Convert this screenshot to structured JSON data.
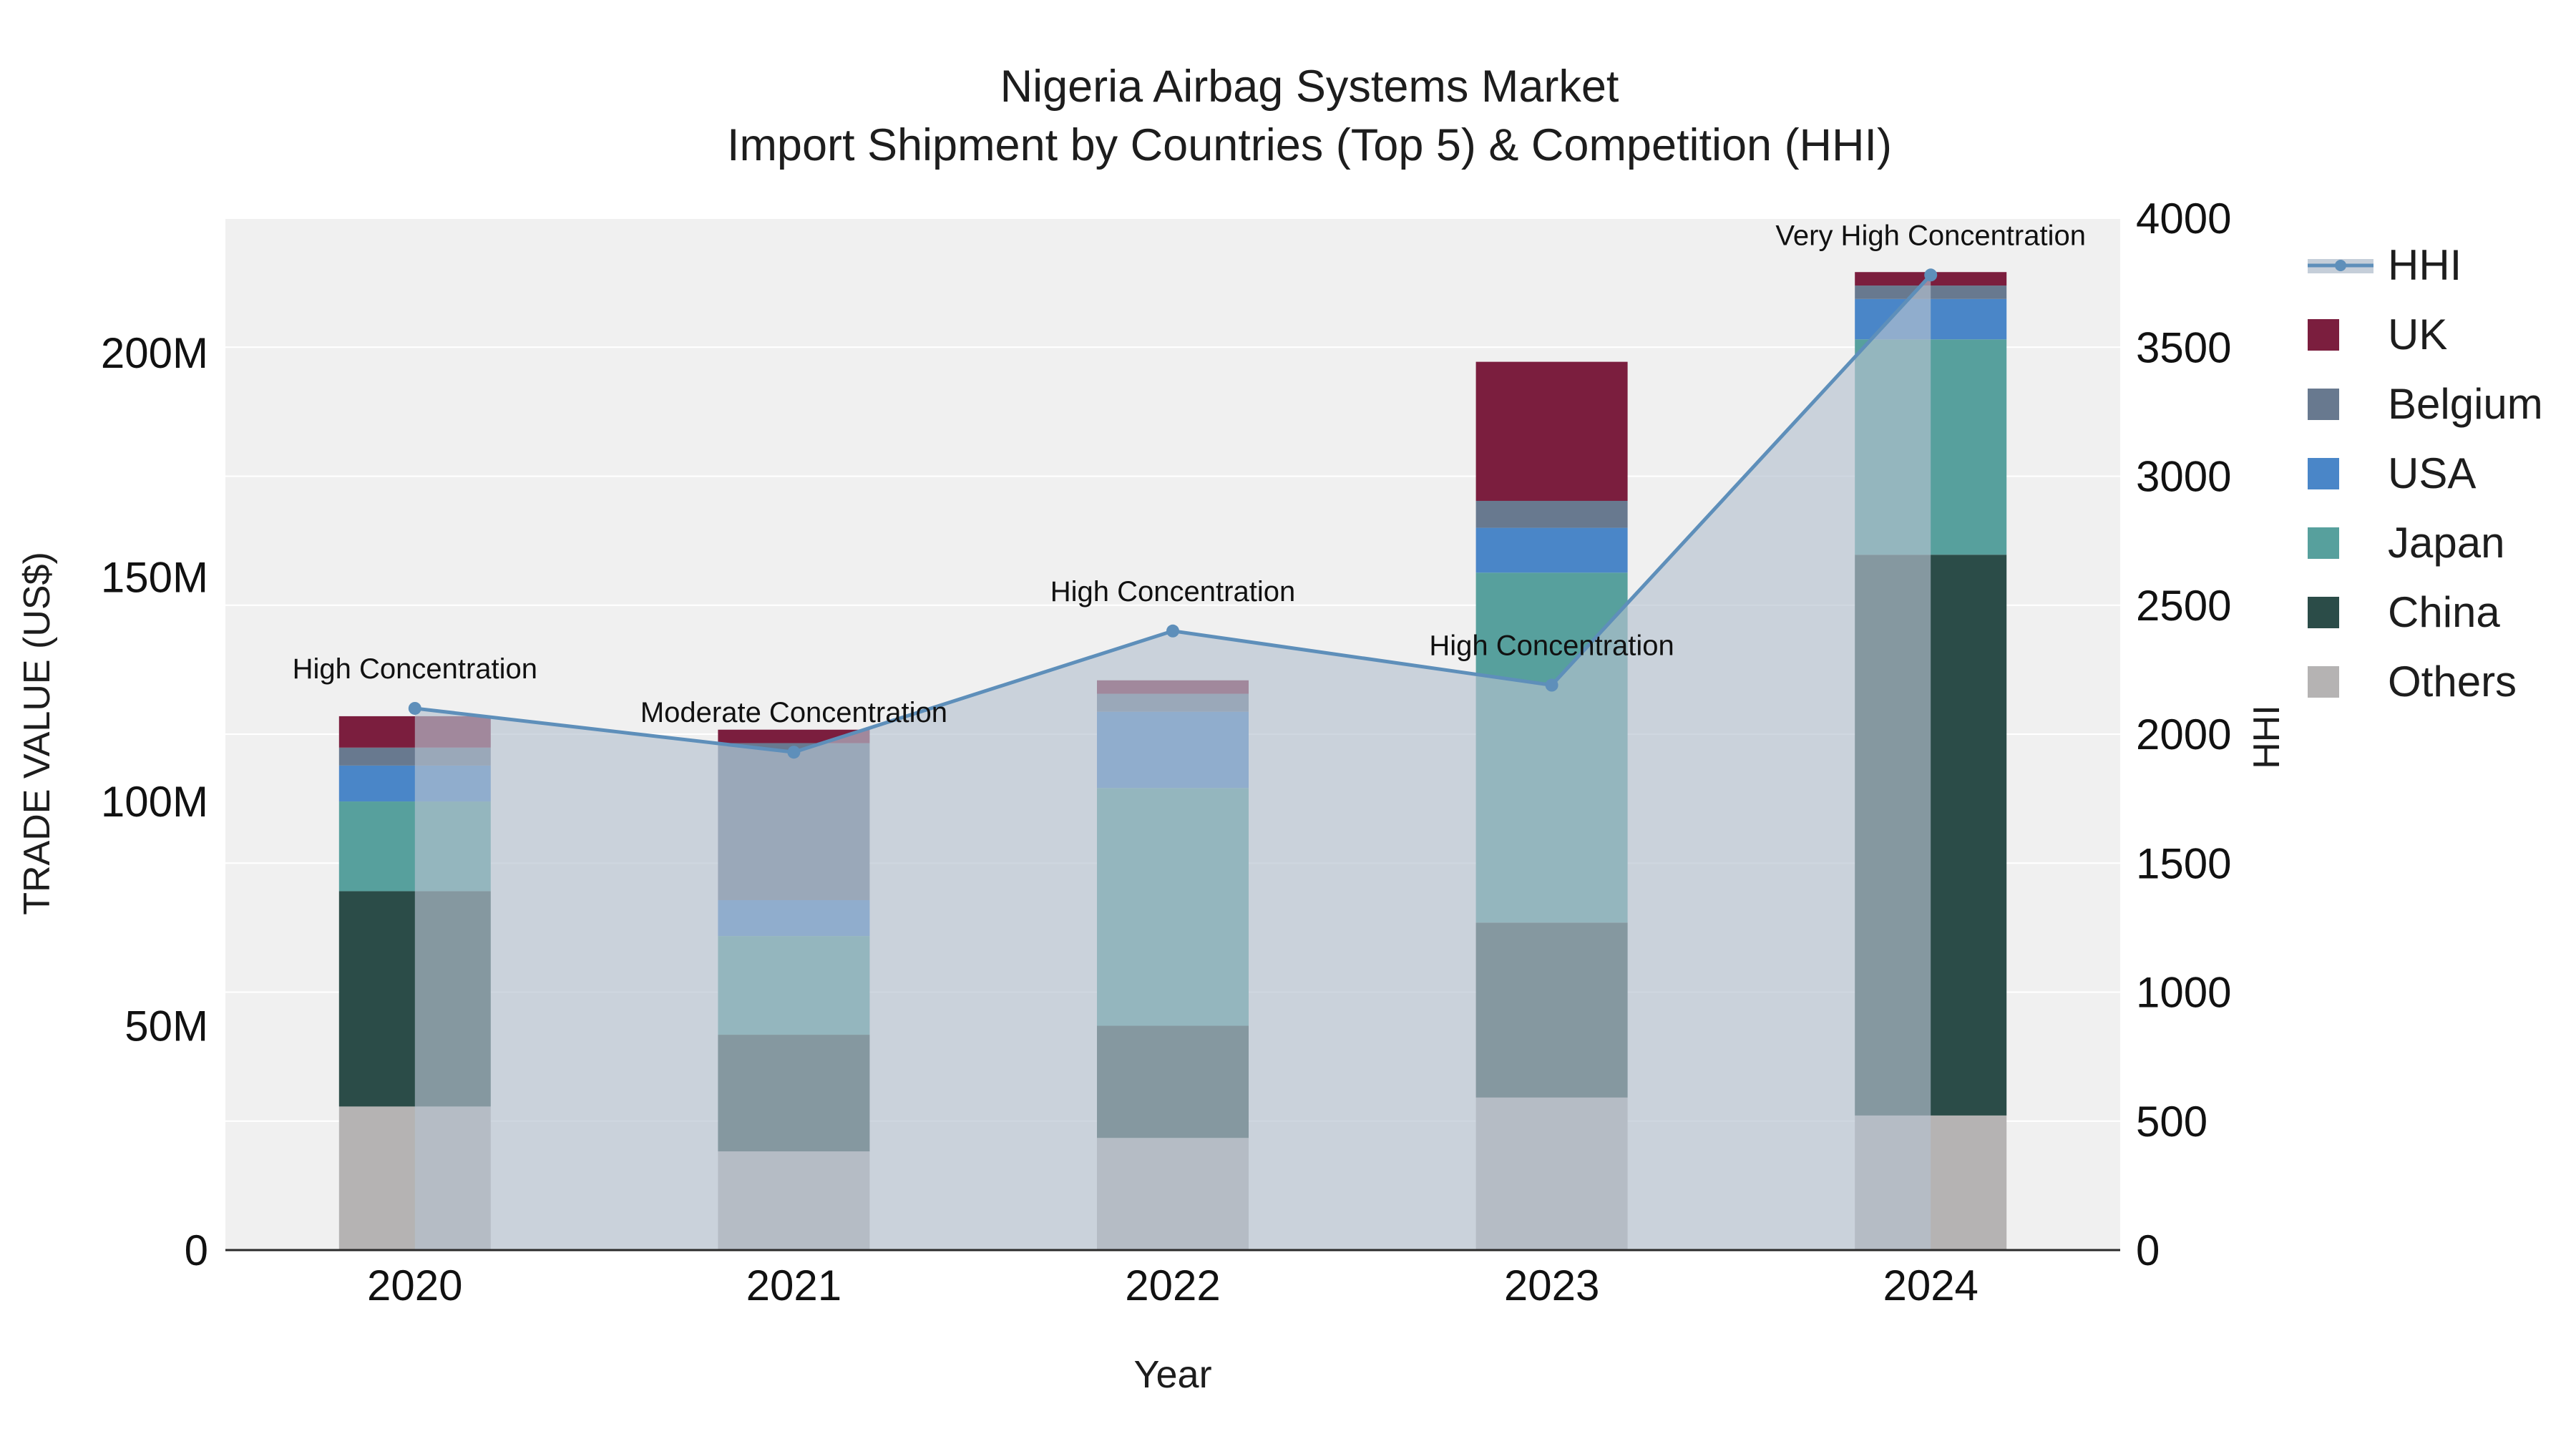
{
  "chart_data": {
    "type": "bar",
    "variant": "stacked-bars-with-hhi-line-area-dual-axis",
    "title": "Nigeria Airbag Systems Market",
    "subtitle": "Import Shipment by Countries (Top 5) & Competition (HHI)",
    "xlabel": "Year",
    "ylabel_left": "TRADE VALUE (US$)",
    "ylabel_right": "HHI",
    "unit_left": "USD millions",
    "categories": [
      "2020",
      "2021",
      "2022",
      "2023",
      "2024"
    ],
    "stack_order_bottom_to_top": [
      "Others",
      "China",
      "Japan",
      "USA",
      "Belgium",
      "UK"
    ],
    "series": [
      {
        "name": "Others",
        "color": "#b5b3b3",
        "values": [
          32,
          22,
          25,
          34,
          30
        ]
      },
      {
        "name": "China",
        "color": "#2b4c48",
        "values": [
          48,
          26,
          25,
          39,
          125
        ]
      },
      {
        "name": "Japan",
        "color": "#57a09d",
        "values": [
          20,
          22,
          53,
          78,
          48
        ]
      },
      {
        "name": "USA",
        "color": "#4a86c8",
        "values": [
          8,
          8,
          17,
          10,
          9
        ]
      },
      {
        "name": "Belgium",
        "color": "#68798f",
        "values": [
          4,
          35,
          4,
          6,
          3
        ]
      },
      {
        "name": "UK",
        "color": "#7b1e3e",
        "values": [
          7,
          3,
          3,
          31,
          3
        ]
      }
    ],
    "totals": [
      119,
      116,
      127,
      198,
      218
    ],
    "hhi": {
      "name": "HHI",
      "values": [
        2100,
        1930,
        2400,
        2190,
        3780
      ],
      "line_color": "#5e8fba",
      "area_color": "#b6c2d0",
      "area_opacity": 0.65
    },
    "annotations": [
      {
        "x": "2020",
        "text": "High Concentration"
      },
      {
        "x": "2021",
        "text": "Moderate Concentration"
      },
      {
        "x": "2022",
        "text": "High Concentration"
      },
      {
        "x": "2023",
        "text": "High Concentration"
      },
      {
        "x": "2024",
        "text": "Very High Concentration"
      }
    ],
    "y_left": {
      "max": 230,
      "ticks": [
        {
          "v": 0,
          "label": "0"
        },
        {
          "v": 50,
          "label": "50M"
        },
        {
          "v": 100,
          "label": "100M"
        },
        {
          "v": 150,
          "label": "150M"
        },
        {
          "v": 200,
          "label": "200M"
        }
      ]
    },
    "y_right": {
      "max": 4000,
      "ticks": [
        0,
        500,
        1000,
        1500,
        2000,
        2500,
        3000,
        3500,
        4000
      ]
    },
    "plot_bg": "#f0f0f0",
    "grid_color": "#ffffff",
    "legend_position": "right"
  },
  "legend": {
    "items": [
      {
        "label": "HHI",
        "type": "line"
      },
      {
        "label": "UK",
        "color": "#7b1e3e"
      },
      {
        "label": "Belgium",
        "color": "#68798f"
      },
      {
        "label": "USA",
        "color": "#4a86c8"
      },
      {
        "label": "Japan",
        "color": "#57a09d"
      },
      {
        "label": "China",
        "color": "#2b4c48"
      },
      {
        "label": "Others",
        "color": "#b5b3b3"
      }
    ]
  }
}
